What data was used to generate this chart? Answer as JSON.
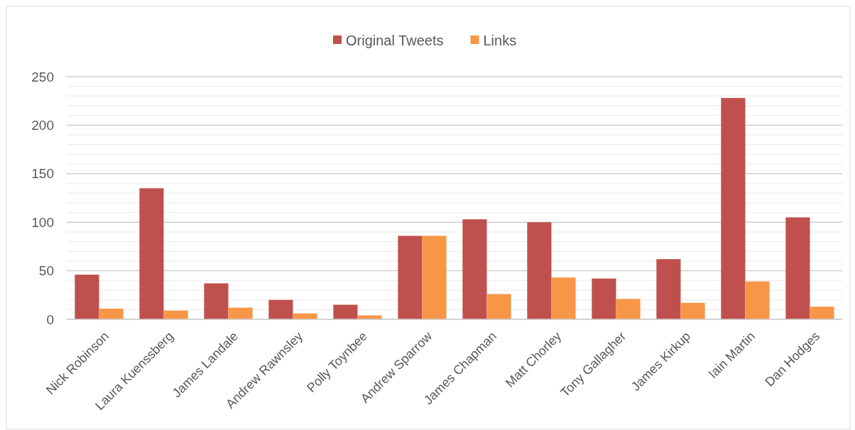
{
  "chart_data": {
    "type": "bar",
    "categories": [
      "Nick Robinson",
      "Laura Kuenssberg",
      "James Landale",
      "Andrew Rawnsley",
      "Polly Toynbee",
      "Andrew Sparrow",
      "James Chapman",
      "Matt Chorley",
      "Tony Gallagher",
      "James Kirkup",
      "Iain Martin",
      "Dan Hodges"
    ],
    "series": [
      {
        "name": "Original Tweets",
        "color": "#c0504d",
        "values": [
          46,
          135,
          37,
          20,
          15,
          86,
          103,
          100,
          42,
          62,
          228,
          105
        ]
      },
      {
        "name": "Links",
        "color": "#f79646",
        "values": [
          11,
          9,
          12,
          6,
          4,
          86,
          26,
          43,
          21,
          17,
          39,
          13
        ]
      }
    ],
    "ylim": [
      0,
      250
    ],
    "yticks": [
      0,
      {
        "value": 10,
        "label": null
      },
      {
        "value": 20,
        "label": null
      },
      {
        "value": 30,
        "label": null
      },
      {
        "value": 40,
        "label": null
      },
      50,
      {
        "value": 60,
        "label": null
      },
      {
        "value": 70,
        "label": null
      },
      {
        "value": 80,
        "label": null
      },
      {
        "value": 90,
        "label": null
      },
      100,
      {
        "value": 110,
        "label": null
      },
      {
        "value": 120,
        "label": null
      },
      {
        "value": 130,
        "label": null
      },
      {
        "value": 140,
        "label": null
      },
      150,
      {
        "value": 160,
        "label": null
      },
      {
        "value": 170,
        "label": null
      },
      {
        "value": 180,
        "label": null
      },
      {
        "value": 190,
        "label": null
      },
      200,
      {
        "value": 210,
        "label": null
      },
      {
        "value": 220,
        "label": null
      },
      {
        "value": 230,
        "label": null
      },
      {
        "value": 240,
        "label": null
      },
      250
    ],
    "grid": true,
    "legend": "top"
  }
}
